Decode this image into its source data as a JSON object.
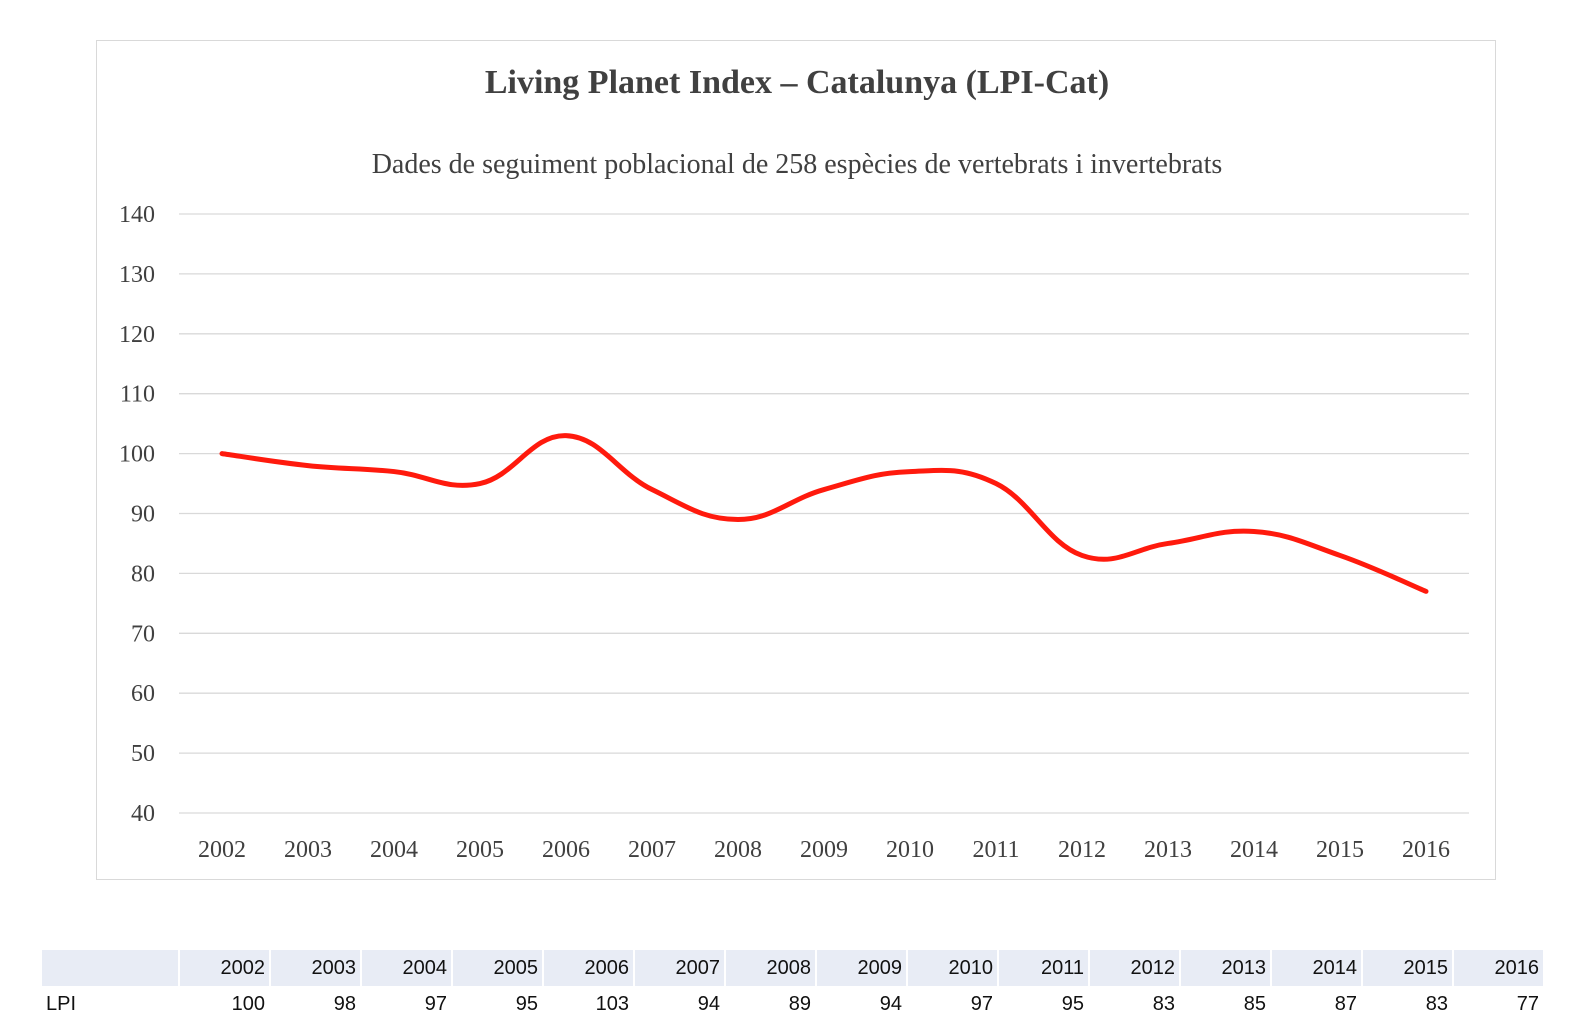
{
  "chart_data": {
    "type": "line",
    "title": "Living Planet Index – Catalunya (LPI-Cat)",
    "subtitle": "Dades de seguiment poblacional de 258 espècies de vertebrats i invertebrats",
    "x": [
      "2002",
      "2003",
      "2004",
      "2005",
      "2006",
      "2007",
      "2008",
      "2009",
      "2010",
      "2011",
      "2012",
      "2013",
      "2014",
      "2015",
      "2016"
    ],
    "series": [
      {
        "values": [
          100,
          98,
          97,
          95,
          103,
          94,
          89,
          94,
          97,
          95,
          83,
          85,
          87,
          83,
          77
        ]
      }
    ],
    "ylim": [
      40,
      140
    ],
    "yticks": [
      "40",
      "50",
      "60",
      "70",
      "80",
      "90",
      "100",
      "110",
      "120",
      "130",
      "140"
    ],
    "grid": true,
    "line_color": "#ff1a0d"
  },
  "table": {
    "row_label": "LPI",
    "years": [
      "2002",
      "2003",
      "2004",
      "2005",
      "2006",
      "2007",
      "2008",
      "2009",
      "2010",
      "2011",
      "2012",
      "2013",
      "2014",
      "2015",
      "2016"
    ],
    "values": [
      "100",
      "98",
      "97",
      "95",
      "103",
      "94",
      "89",
      "94",
      "97",
      "95",
      "83",
      "85",
      "87",
      "83",
      "77"
    ]
  }
}
